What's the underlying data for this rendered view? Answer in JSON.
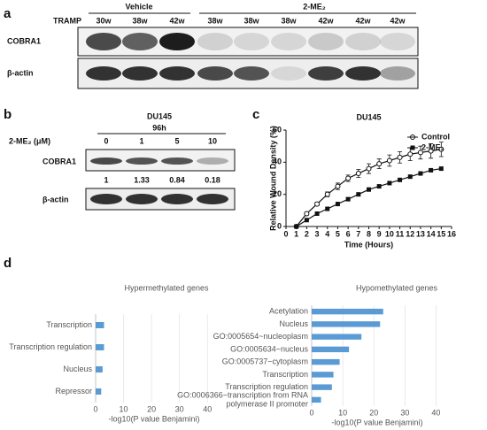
{
  "panels": {
    "a": {
      "letter": "a",
      "row_header": "TRAMP",
      "groups": [
        "Vehicle",
        "2-ME₂"
      ],
      "lanes": [
        "30w",
        "38w",
        "42w",
        "38w",
        "38w",
        "38w",
        "42w",
        "42w",
        "42w"
      ],
      "rows": [
        "COBRA1",
        "β-actin"
      ]
    },
    "b": {
      "letter": "b",
      "cell_line": "DU145",
      "time": "96h",
      "treatment_label": "2-ME₂ (μM)",
      "doses": [
        "0",
        "1",
        "5",
        "10"
      ],
      "rows": [
        "COBRA1",
        "β-actin"
      ],
      "quantification": [
        "1",
        "1.33",
        "0.84",
        "0.18"
      ]
    },
    "c": {
      "letter": "c"
    },
    "d": {
      "letter": "d"
    }
  },
  "chart_data": [
    {
      "type": "line",
      "title": "DU145",
      "x_label": "Time (Hours)",
      "y_label": "Relative Wound Density (%)",
      "x": [
        1,
        2,
        3,
        4,
        5,
        6,
        7,
        8,
        9,
        10,
        11,
        12,
        13,
        14,
        15
      ],
      "series": [
        {
          "name": "Control",
          "color": "#111111",
          "marker": "circle-open",
          "values": [
            0,
            8,
            14,
            20,
            25,
            30,
            33,
            36,
            39,
            41,
            43,
            45,
            46,
            47,
            48
          ],
          "errors": [
            0,
            1,
            1,
            1.5,
            2,
            2,
            2.5,
            3,
            3,
            3.5,
            3.5,
            4,
            4,
            4.5,
            4.5
          ]
        },
        {
          "name": "2-ME₂",
          "color": "#111111",
          "marker": "square-filled",
          "values": [
            0,
            4,
            8,
            11,
            14,
            17,
            20,
            23,
            25,
            27,
            29,
            31,
            33,
            35,
            36
          ]
        }
      ],
      "xlim": [
        0,
        16
      ],
      "xticks": [
        0,
        1,
        2,
        3,
        4,
        5,
        6,
        7,
        8,
        9,
        10,
        11,
        12,
        13,
        14,
        15,
        16
      ],
      "ylim": [
        0,
        60
      ],
      "yticks": [
        0,
        20,
        40,
        60
      ],
      "legend": "upper right"
    },
    {
      "type": "bar",
      "orientation": "horizontal",
      "title": "Hypermethylated genes",
      "x_label": "-log10(P value Benjamini)",
      "categories": [
        "Transcription",
        "Transcription regulation",
        "Nucleus",
        "Repressor"
      ],
      "values": [
        3,
        3,
        2.5,
        2
      ],
      "color": "#5b9bd5",
      "xlim": [
        0,
        45
      ],
      "xticks": [
        0,
        10,
        20,
        30,
        40
      ],
      "grid": true
    },
    {
      "type": "bar",
      "orientation": "horizontal",
      "title": "Hypomethylated genes",
      "x_label": "-log10(P value Benjamini)",
      "categories": [
        "Acetylation",
        "Nucleus",
        "GO:0005654~nucleoplasm",
        "GO:0005634~nucleus",
        "GO:0005737~cytoplasm",
        "Transcription",
        "Transcription regulation",
        "GO:0006366~transcription from RNA\npolymerase II promoter"
      ],
      "values": [
        23,
        22,
        16,
        12,
        9,
        7,
        6.5,
        3
      ],
      "color": "#5b9bd5",
      "xlim": [
        0,
        45
      ],
      "xticks": [
        0,
        10,
        20,
        30,
        40
      ],
      "grid": true
    }
  ]
}
